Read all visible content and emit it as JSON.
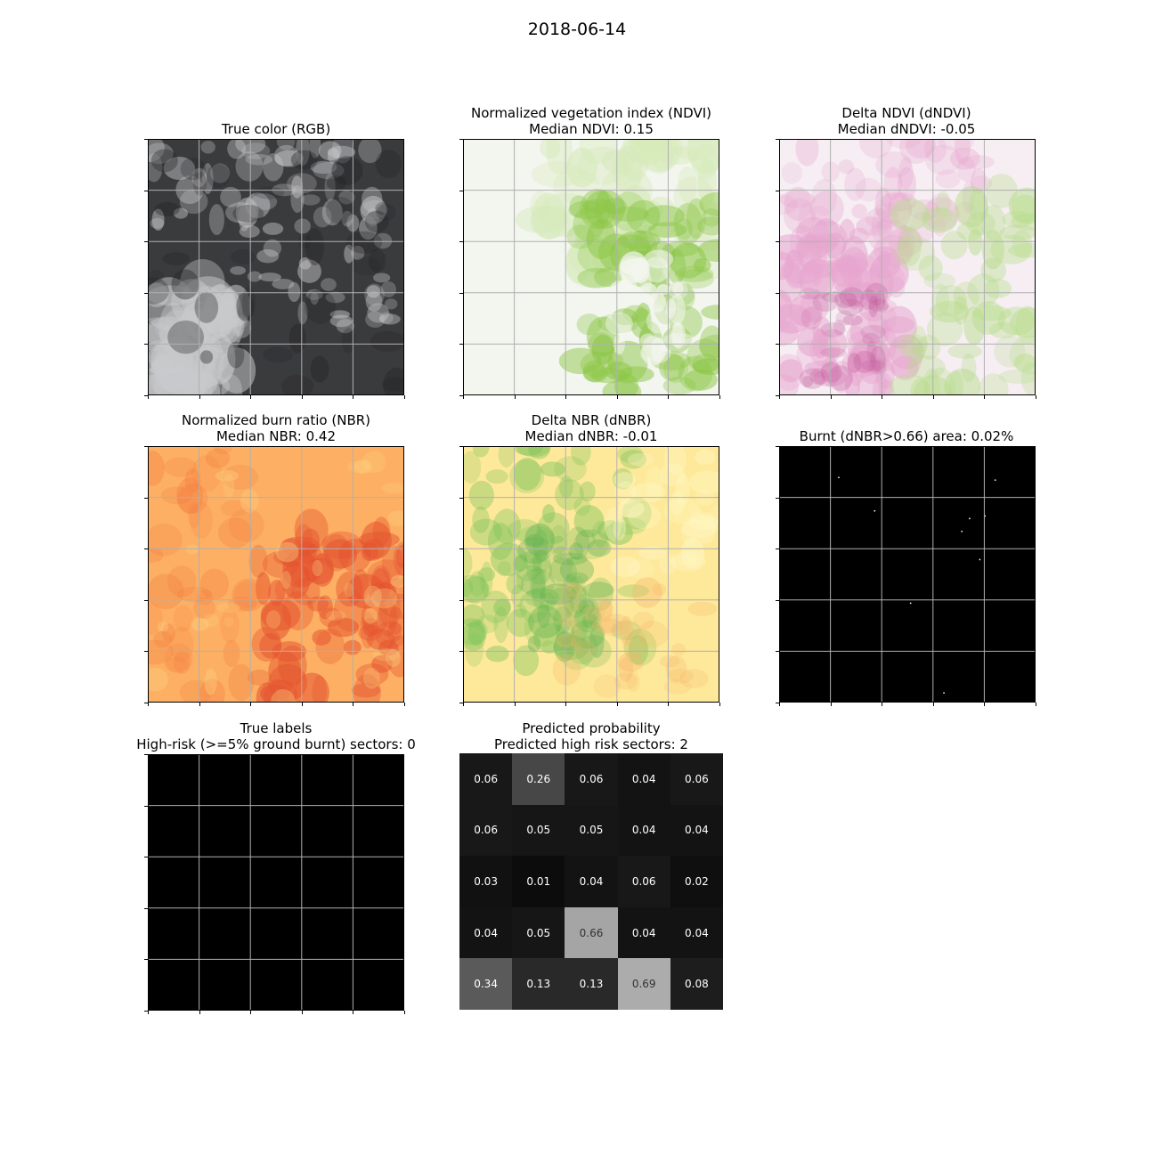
{
  "suptitle": "2018-06-14",
  "panels": {
    "rgb": {
      "title1": "True color (RGB)",
      "title2": ""
    },
    "ndvi": {
      "title1": "Normalized vegetation index (NDVI)",
      "title2": "Median NDVI: 0.15"
    },
    "dndvi": {
      "title1": "Delta NDVI (dNDVI)",
      "title2": "Median dNDVI: -0.05"
    },
    "nbr": {
      "title1": "Normalized burn ratio (NBR)",
      "title2": "Median NBR: 0.42"
    },
    "dnbr": {
      "title1": "Delta NBR (dNBR)",
      "title2": "Median dNBR: -0.01"
    },
    "burnt": {
      "title1": "Burnt (dNBR>0.66) area: 0.02%",
      "title2": ""
    },
    "labels": {
      "title1": "True labels",
      "title2": "High-risk (>=5% ground burnt) sectors: 0"
    },
    "pred": {
      "title1": "Predicted probability",
      "title2": "Predicted high risk sectors: 2"
    }
  },
  "chart_data": {
    "type": "heatmap",
    "title": "Predicted probability",
    "subtitle": "Predicted high risk sectors: 2",
    "grid_size": [
      5,
      5
    ],
    "colormap": "greys",
    "values": [
      [
        0.06,
        0.26,
        0.06,
        0.04,
        0.06
      ],
      [
        0.06,
        0.05,
        0.05,
        0.04,
        0.04
      ],
      [
        0.03,
        0.01,
        0.04,
        0.06,
        0.02
      ],
      [
        0.04,
        0.05,
        0.66,
        0.04,
        0.04
      ],
      [
        0.34,
        0.13,
        0.13,
        0.69,
        0.08
      ]
    ],
    "true_labels": [
      [
        0,
        0,
        0,
        0,
        0
      ],
      [
        0,
        0,
        0,
        0,
        0
      ],
      [
        0,
        0,
        0,
        0,
        0
      ],
      [
        0,
        0,
        0,
        0,
        0
      ],
      [
        0,
        0,
        0,
        0,
        0
      ]
    ]
  },
  "colors": {
    "rgb_base": "#3a3b3d",
    "rgb_cloud": "#c9cacc",
    "ndvi_low": "#f3f5ef",
    "ndvi_high": "#8cc646",
    "dndvi_neg": "#e7a6cf",
    "dndvi_pos": "#b8dd8c",
    "nbr_low": "#fdb063",
    "nbr_high": "#e4522f",
    "dnbr_low": "#fee99a",
    "dnbr_high": "#7cc35a",
    "burnt_bg": "#000000",
    "grid": "#b0b0b0"
  }
}
